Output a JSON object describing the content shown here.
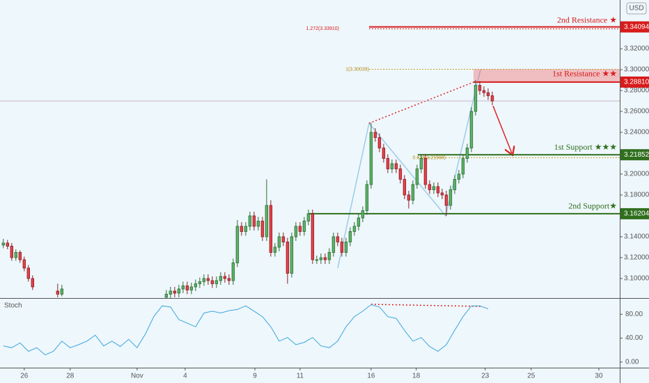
{
  "chart_data": {
    "type": "candlestick",
    "currency": "USD",
    "up_color": "#5fb36a",
    "down_color": "#e5424b",
    "x": [
      0,
      1,
      2,
      3,
      4,
      5,
      6,
      7,
      13,
      14,
      39,
      40,
      41,
      42,
      43,
      44,
      45,
      46,
      47,
      48,
      49,
      50,
      51,
      52,
      53,
      54,
      55,
      56,
      57,
      58,
      59,
      60,
      61,
      62,
      63,
      64,
      65,
      66,
      67,
      68,
      69,
      70,
      71,
      72,
      73,
      74,
      75,
      76,
      77,
      78,
      79,
      80,
      81,
      82,
      83,
      84,
      85,
      86,
      87,
      88,
      89,
      90,
      91,
      92,
      93,
      94,
      95,
      96,
      97,
      98,
      99,
      100,
      101,
      102,
      103,
      104,
      105,
      106,
      107,
      108,
      109,
      110,
      111,
      112,
      113,
      114,
      115,
      116,
      117
    ],
    "open": [
      3.132,
      3.134,
      3.131,
      3.12,
      3.125,
      3.118,
      3.11,
      3.1,
      3.088,
      3.085,
      3.082,
      3.085,
      3.088,
      3.086,
      3.09,
      3.093,
      3.089,
      3.092,
      3.095,
      3.097,
      3.1,
      3.098,
      3.095,
      3.098,
      3.102,
      3.1,
      3.098,
      3.115,
      3.15,
      3.145,
      3.15,
      3.16,
      3.15,
      3.155,
      3.14,
      3.17,
      3.125,
      3.13,
      3.14,
      3.135,
      3.105,
      3.14,
      3.15,
      3.145,
      3.155,
      3.162,
      3.118,
      3.118,
      3.12,
      3.118,
      3.125,
      3.14,
      3.135,
      3.125,
      3.135,
      3.145,
      3.15,
      3.158,
      3.165,
      3.19,
      3.24,
      3.235,
      3.225,
      3.215,
      3.205,
      3.21,
      3.205,
      3.195,
      3.18,
      3.175,
      3.19,
      3.205,
      3.215,
      3.19,
      3.185,
      3.188,
      3.182,
      3.18,
      3.17,
      3.185,
      3.195,
      3.2,
      3.215,
      3.225,
      3.26,
      3.285,
      3.28,
      3.278,
      3.275
    ],
    "high": [
      3.138,
      3.137,
      3.134,
      3.128,
      3.127,
      3.121,
      3.113,
      3.103,
      3.095,
      3.094,
      3.089,
      3.092,
      3.092,
      3.094,
      3.097,
      3.097,
      3.096,
      3.099,
      3.101,
      3.104,
      3.104,
      3.102,
      3.102,
      3.106,
      3.106,
      3.104,
      3.119,
      3.156,
      3.154,
      3.154,
      3.164,
      3.164,
      3.159,
      3.159,
      3.195,
      3.175,
      3.134,
      3.144,
      3.144,
      3.139,
      3.144,
      3.154,
      3.154,
      3.159,
      3.166,
      3.166,
      3.122,
      3.124,
      3.124,
      3.129,
      3.144,
      3.144,
      3.139,
      3.139,
      3.149,
      3.154,
      3.162,
      3.169,
      3.194,
      3.249,
      3.244,
      3.239,
      3.229,
      3.219,
      3.214,
      3.214,
      3.209,
      3.199,
      3.184,
      3.194,
      3.209,
      3.219,
      3.219,
      3.194,
      3.192,
      3.192,
      3.186,
      3.184,
      3.189,
      3.199,
      3.204,
      3.219,
      3.229,
      3.264,
      3.29,
      3.289,
      3.284,
      3.282,
      3.279
    ],
    "low": [
      3.129,
      3.128,
      3.117,
      3.117,
      3.115,
      3.107,
      3.097,
      3.089,
      3.082,
      3.083,
      3.078,
      3.081,
      3.082,
      3.082,
      3.086,
      3.085,
      3.085,
      3.088,
      3.091,
      3.093,
      3.094,
      3.091,
      3.091,
      3.094,
      3.096,
      3.094,
      3.094,
      3.111,
      3.141,
      3.141,
      3.146,
      3.146,
      3.146,
      3.136,
      3.136,
      3.121,
      3.121,
      3.126,
      3.131,
      3.095,
      3.101,
      3.136,
      3.141,
      3.141,
      3.151,
      3.114,
      3.114,
      3.114,
      3.114,
      3.114,
      3.121,
      3.131,
      3.121,
      3.121,
      3.131,
      3.141,
      3.146,
      3.154,
      3.161,
      3.186,
      3.231,
      3.221,
      3.211,
      3.201,
      3.201,
      3.201,
      3.191,
      3.176,
      3.167,
      3.171,
      3.186,
      3.201,
      3.186,
      3.181,
      3.181,
      3.178,
      3.176,
      3.16,
      3.166,
      3.181,
      3.191,
      3.196,
      3.211,
      3.221,
      3.256,
      3.276,
      3.274,
      3.271,
      3.266
    ],
    "close": [
      3.134,
      3.131,
      3.12,
      3.125,
      3.118,
      3.11,
      3.1,
      3.092,
      3.085,
      3.09,
      3.085,
      3.088,
      3.086,
      3.09,
      3.093,
      3.089,
      3.092,
      3.095,
      3.097,
      3.1,
      3.098,
      3.095,
      3.098,
      3.102,
      3.1,
      3.098,
      3.115,
      3.15,
      3.145,
      3.15,
      3.16,
      3.15,
      3.155,
      3.14,
      3.17,
      3.125,
      3.13,
      3.14,
      3.135,
      3.105,
      3.14,
      3.15,
      3.145,
      3.155,
      3.162,
      3.118,
      3.118,
      3.12,
      3.118,
      3.125,
      3.14,
      3.135,
      3.125,
      3.135,
      3.145,
      3.15,
      3.158,
      3.165,
      3.19,
      3.24,
      3.235,
      3.225,
      3.215,
      3.205,
      3.21,
      3.205,
      3.195,
      3.18,
      3.175,
      3.19,
      3.205,
      3.215,
      3.19,
      3.185,
      3.188,
      3.182,
      3.18,
      3.17,
      3.185,
      3.195,
      3.2,
      3.215,
      3.225,
      3.26,
      3.285,
      3.28,
      3.278,
      3.275,
      3.27
    ],
    "xlim": [
      -0.8,
      147.5
    ],
    "xticks": [
      {
        "value": 5,
        "label": "26"
      },
      {
        "value": 16,
        "label": "28"
      },
      {
        "value": 32,
        "label": "Nov"
      },
      {
        "value": 43.5,
        "label": "4"
      },
      {
        "value": 60.2,
        "label": "9"
      },
      {
        "value": 71,
        "label": "11"
      },
      {
        "value": 88,
        "label": "16"
      },
      {
        "value": 98.8,
        "label": "18"
      },
      {
        "value": 115.3,
        "label": "23"
      },
      {
        "value": 126.3,
        "label": "25"
      },
      {
        "value": 142.5,
        "label": "30"
      }
    ],
    "ylim": [
      3.0813,
      3.3667
    ],
    "yticks": [
      {
        "value": 3.1,
        "label": "3.10000"
      },
      {
        "value": 3.12,
        "label": "3.12000"
      },
      {
        "value": 3.14,
        "label": "3.14000"
      },
      {
        "value": 3.16,
        "label": "3.16000"
      },
      {
        "value": 3.18,
        "label": "3.18000"
      },
      {
        "value": 3.2,
        "label": "3.20000"
      },
      {
        "value": 3.22,
        "label": "3.22000"
      },
      {
        "value": 3.24,
        "label": "3.24000"
      },
      {
        "value": 3.26,
        "label": "3.26000"
      },
      {
        "value": 3.28,
        "label": "3.28000"
      },
      {
        "value": 3.3,
        "label": "3.30000"
      },
      {
        "value": 3.32,
        "label": "3.32000"
      }
    ],
    "levels": {
      "names": [
        "2nd Resistance ★",
        "1st Resistance ★★",
        "1st Support ★★★",
        "2nd Support★"
      ],
      "values": [
        3.34094,
        3.2881,
        3.21852,
        3.16204
      ],
      "value_labels": [
        "3.34094",
        "3.28810",
        "3.21852",
        "3.16204"
      ],
      "colors": [
        "#d81b1b",
        "#d81b1b",
        "#2f6f1d",
        "#2f6f1d"
      ]
    },
    "fib": {
      "labels": [
        "1.272(3.33910)",
        "1(3.30039)",
        "0.618(3.21568)"
      ],
      "values": [
        3.3391,
        3.30039,
        3.21568
      ]
    },
    "y2lim": [
      -9.4,
      105.9
    ],
    "y2ticks": [
      {
        "value": 0,
        "label": "0.00"
      },
      {
        "value": 40,
        "label": "40.00"
      },
      {
        "value": 80,
        "label": "80.00"
      }
    ],
    "series": [
      {
        "name": "Stoch",
        "color": "#3aa6dd",
        "axis": "y2",
        "x": [
          0,
          2,
          4,
          6,
          8,
          10,
          12,
          14,
          16,
          18,
          20,
          22,
          24,
          26,
          28,
          30,
          32,
          34,
          36,
          38,
          40,
          42,
          44,
          46,
          48,
          50,
          52,
          54,
          56,
          58,
          60,
          62,
          64,
          66,
          68,
          70,
          72,
          74,
          76,
          78,
          80,
          82,
          84,
          86,
          88,
          90,
          92,
          94,
          96,
          98,
          100,
          102,
          104,
          106,
          108,
          110,
          112,
          114,
          116
        ],
        "values": [
          27,
          24,
          32,
          18,
          24,
          12,
          18,
          35,
          24,
          29,
          35,
          45,
          27,
          35,
          26,
          38,
          24,
          47,
          76,
          94,
          92,
          71,
          65,
          59,
          82,
          85,
          82,
          86,
          88,
          94,
          85,
          76,
          59,
          35,
          41,
          29,
          33,
          41,
          27,
          24,
          35,
          59,
          76,
          85,
          96,
          92,
          76,
          73,
          53,
          35,
          41,
          26,
          18,
          29,
          53,
          76,
          94,
          94,
          89
        ]
      }
    ]
  }
}
